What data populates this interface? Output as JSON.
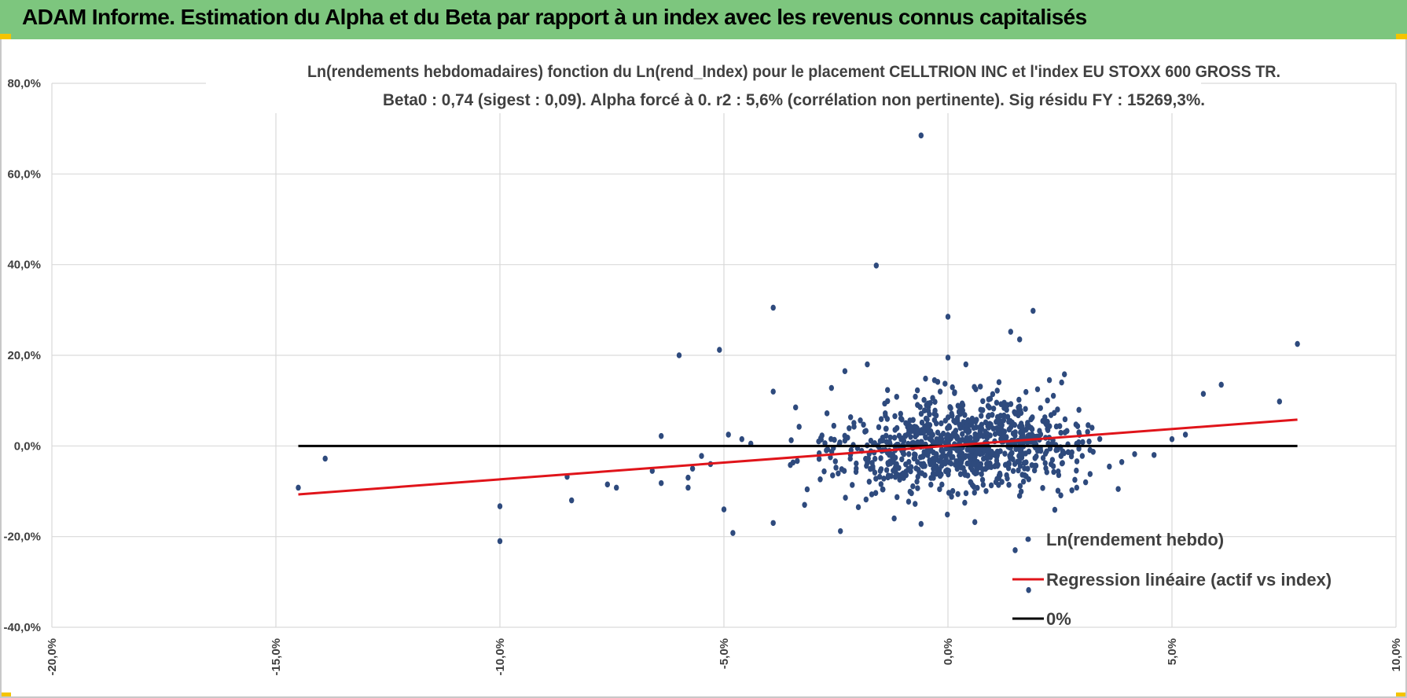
{
  "header": {
    "title": "ADAM Informe. Estimation du Alpha et du Beta par rapport à un index avec les revenus connus capitalisés",
    "background": "#7dc67e"
  },
  "chart_data": {
    "type": "scatter",
    "title": "Ln(rendements hebdomadaires) fonction du Ln(rend_Index) pour le placement CELLTRION INC et l'index EU STOXX 600 GROSS TR.",
    "subtitle": "Beta0 : 0,74 (sigest : 0,09).  Alpha forcé à 0. r2 : 5,6% (corrélation non pertinente). Sig résidu FY : 15269,3%.",
    "xlabel": "",
    "ylabel": "",
    "xlim": [
      -20,
      10
    ],
    "ylim": [
      -40,
      80
    ],
    "x_ticks": [
      -20,
      -15,
      -10,
      -5,
      0,
      5,
      10
    ],
    "x_tick_labels": [
      "-20,0%",
      "-15,0%",
      "-10,0%",
      "-5,0%",
      "0,0%",
      "5,0%",
      "10,0%"
    ],
    "y_ticks": [
      -40,
      -20,
      0,
      20,
      40,
      60,
      80
    ],
    "y_tick_labels": [
      "-40,0%",
      "-20,0%",
      "0,0%",
      "20,0%",
      "40,0%",
      "60,0%",
      "80,0%"
    ],
    "grid": true,
    "legend_position": "bottom-right",
    "series": [
      {
        "name": "Ln(rendement hebdo)",
        "kind": "scatter",
        "color": "#2e4a7d",
        "points": [
          [
            -14.5,
            -9.2
          ],
          [
            -13.9,
            -2.8
          ],
          [
            -10.0,
            -13.3
          ],
          [
            -10.0,
            -21.0
          ],
          [
            -8.5,
            -6.8
          ],
          [
            -8.4,
            -12.0
          ],
          [
            -7.6,
            -8.5
          ],
          [
            -7.4,
            -9.2
          ],
          [
            -6.6,
            -5.5
          ],
          [
            -6.4,
            -8.2
          ],
          [
            -6.4,
            2.2
          ],
          [
            -6.0,
            20.0
          ],
          [
            -5.8,
            -9.2
          ],
          [
            -5.8,
            -7.0
          ],
          [
            -5.7,
            -5.0
          ],
          [
            -5.5,
            -2.2
          ],
          [
            -5.3,
            -4.0
          ],
          [
            -5.1,
            21.2
          ],
          [
            -5.0,
            -14.0
          ],
          [
            -4.9,
            2.5
          ],
          [
            -4.8,
            -19.2
          ],
          [
            -4.6,
            1.5
          ],
          [
            -4.4,
            0.5
          ],
          [
            -3.9,
            30.5
          ],
          [
            -3.9,
            12.0
          ],
          [
            -3.9,
            -17.0
          ],
          [
            -3.4,
            8.5
          ],
          [
            -2.7,
            7.2
          ],
          [
            -2.3,
            16.5
          ],
          [
            -2.4,
            -18.8
          ],
          [
            -1.8,
            18.0
          ],
          [
            -1.6,
            39.8
          ],
          [
            -0.6,
            68.5
          ],
          [
            0.0,
            28.5
          ],
          [
            0.0,
            19.5
          ],
          [
            0.4,
            18.0
          ],
          [
            1.4,
            25.2
          ],
          [
            1.6,
            23.5
          ],
          [
            1.5,
            -23.0
          ],
          [
            1.9,
            29.8
          ],
          [
            2.6,
            15.8
          ],
          [
            1.8,
            -31.8
          ],
          [
            5.7,
            11.5
          ],
          [
            6.1,
            13.5
          ],
          [
            7.4,
            9.8
          ],
          [
            7.8,
            22.5
          ],
          [
            4.6,
            -2.0
          ],
          [
            5.0,
            1.5
          ],
          [
            5.3,
            2.5
          ],
          [
            3.8,
            -9.5
          ],
          [
            2.0,
            12.5
          ],
          [
            -0.3,
            14.5
          ],
          [
            -1.2,
            -16.0
          ],
          [
            -0.6,
            -17.2
          ],
          [
            0.6,
            -16.8
          ],
          [
            -3.2,
            -13.0
          ],
          [
            -2.0,
            -13.5
          ],
          [
            -1.4,
            7.2
          ],
          [
            1.1,
            12.2
          ],
          [
            -2.6,
            12.8
          ]
        ]
      },
      {
        "name": "Regression linéaire (actif vs index)",
        "kind": "line",
        "color": "#e0141a",
        "slope": 0.74,
        "intercept": 0,
        "x": [
          -14.5,
          7.8
        ],
        "y": [
          -10.7,
          5.8
        ]
      },
      {
        "name": "0%",
        "kind": "line",
        "color": "#000000",
        "x": [
          -14.5,
          7.8
        ],
        "y": [
          0,
          0
        ]
      }
    ],
    "dense_cluster": {
      "description": "additional ~900 weekly observations concentrated around the origin",
      "count": 900,
      "x_center": 0.3,
      "x_sd": 1.4,
      "y_sd": 5.0
    }
  }
}
